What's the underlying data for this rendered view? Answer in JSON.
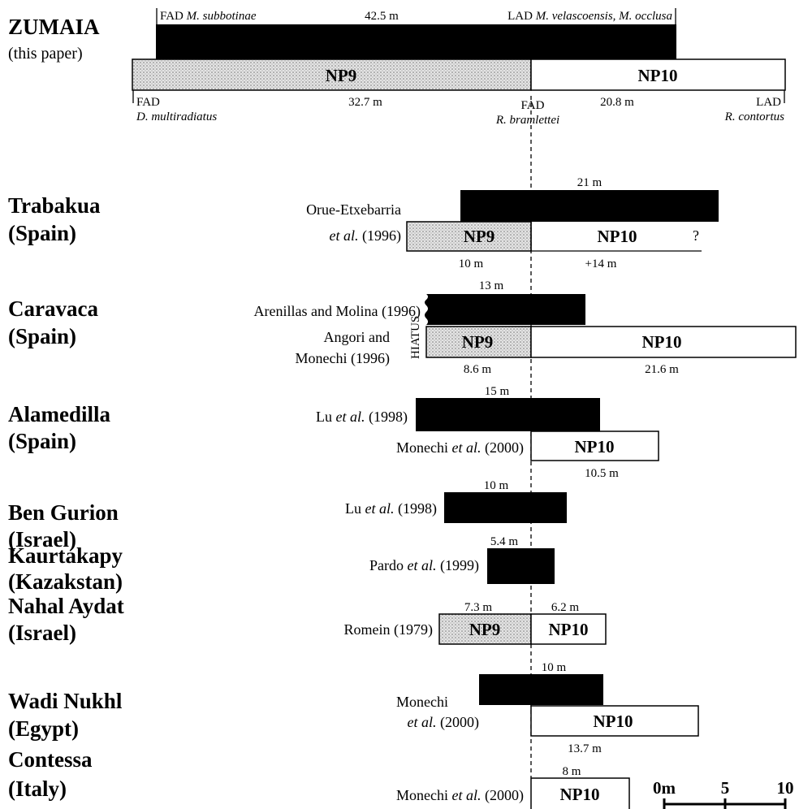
{
  "zumaia": {
    "name": "ZUMAIA",
    "source": "(this paper)",
    "np9": "NP9",
    "np10": "NP10",
    "top": {
      "fad": "FAD",
      "fad_taxon": "M. subbotinae",
      "thickness": "42.5 m",
      "lad": "LAD",
      "lad_taxon": "M. velascoensis, M. occlusa"
    },
    "bottom": {
      "fad_start": "FAD",
      "fad_start_taxon": "D. multiradiatus",
      "np9_thickness": "32.7 m",
      "fad_boundary": "FAD",
      "fad_boundary_taxon": "R. bramlettei",
      "np10_thickness": "20.8 m",
      "lad": "LAD",
      "lad_taxon": "R. contortus"
    }
  },
  "sections": [
    {
      "name": "Trabakua",
      "country": "(Spain)",
      "ref_author": "Orue-Etxebarria",
      "ref_etal": "et al.",
      "ref_year": " (1996)",
      "thickness": "21 m",
      "np9": "NP9",
      "np10": "NP10",
      "uncertain": "?",
      "np9_thickness": "10 m",
      "np10_thickness": "+14 m"
    },
    {
      "name": "Caravaca",
      "country": "(Spain)",
      "ref_planktic": "Arenillas and Molina (1996)",
      "ref_nanno_1": "Angori and",
      "ref_nanno_2": "Monechi (1996)",
      "hiatus": "HIATUS",
      "thickness": "13 m",
      "np9": "NP9",
      "np10": "NP10",
      "np9_thickness": "8.6 m",
      "np10_thickness": "21.6 m"
    },
    {
      "name": "Alamedilla",
      "country": "(Spain)",
      "ref_planktic": [
        "Lu ",
        "et al.",
        " (1998)"
      ],
      "ref_nanno": [
        "Monechi ",
        "et al.",
        " (2000)"
      ],
      "thickness": "15 m",
      "np10": "NP10",
      "np10_thickness": "10.5 m"
    },
    {
      "name": "Ben Gurion",
      "country": "(Israel)",
      "ref": [
        "Lu ",
        "et al.",
        " (1998)"
      ],
      "thickness": "10 m"
    },
    {
      "name": "Kaurtakapy",
      "country": "(Kazakstan)",
      "ref": [
        "Pardo ",
        "et al.",
        " (1999)"
      ],
      "thickness": "5.4 m"
    },
    {
      "name": "Nahal Aydat",
      "country": "(Israel)",
      "ref": "Romein (1979)",
      "np9_thickness": "7.3 m",
      "np10_thickness": "6.2 m",
      "np9": "NP9",
      "np10": "NP10"
    },
    {
      "name": "Wadi Nukhl",
      "country": "(Egypt)",
      "ref_1": "Monechi",
      "ref_2": [
        "et al.",
        " (2000)"
      ],
      "thickness": "10 m",
      "np10": "NP10",
      "np10_thickness": "13.7 m"
    },
    {
      "name": "Contessa",
      "country": "(Italy)",
      "ref": [
        "Monechi ",
        "et al.",
        " (2000)"
      ],
      "thickness": "8 m",
      "np10": "NP10"
    }
  ],
  "scale": {
    "zero": "0m",
    "five": "5",
    "ten": "10"
  }
}
